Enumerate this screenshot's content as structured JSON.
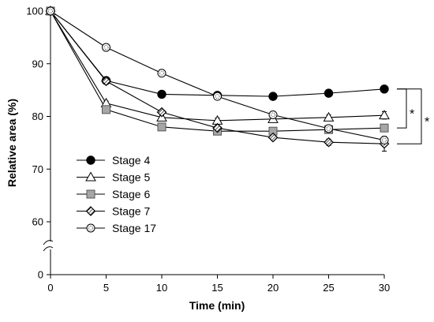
{
  "chart_data": {
    "type": "line",
    "title": "",
    "xlabel": "Time (min)",
    "ylabel": "Relative area (%)",
    "x": [
      0,
      5,
      10,
      15,
      20,
      25,
      30
    ],
    "xticks": [
      0,
      5,
      10,
      15,
      20,
      25,
      30
    ],
    "yticks": [
      0,
      60,
      70,
      80,
      90,
      100
    ],
    "xlim": [
      0,
      30
    ],
    "ylim_upper": [
      60,
      100
    ],
    "y_axis_break": true,
    "grid": false,
    "legend_position": "lower-left",
    "series": [
      {
        "name": "Stage 4",
        "marker": "filled-circle",
        "values": [
          100,
          86.8,
          84.2,
          84.0,
          83.8,
          84.4,
          85.2
        ],
        "errors": [
          0,
          0.3,
          0.3,
          0.3,
          0.3,
          0.3,
          0.3
        ]
      },
      {
        "name": "Stage 5",
        "marker": "open-triangle",
        "values": [
          100,
          82.5,
          79.8,
          79.2,
          79.5,
          79.8,
          80.2
        ],
        "errors": [
          0,
          0.4,
          0.4,
          0.5,
          0.6,
          0.5,
          0.7
        ]
      },
      {
        "name": "Stage 6",
        "marker": "gray-square",
        "values": [
          100,
          81.3,
          78.0,
          77.2,
          77.2,
          77.5,
          77.8
        ],
        "errors": [
          0,
          0.4,
          0.4,
          0.4,
          0.5,
          0.5,
          0.5
        ]
      },
      {
        "name": "Stage 7",
        "marker": "hatched-diamond",
        "values": [
          100,
          86.7,
          80.8,
          77.8,
          76.0,
          75.1,
          74.8
        ],
        "errors": [
          0,
          0.4,
          0.4,
          0.5,
          0.5,
          0.6,
          1.4
        ]
      },
      {
        "name": "Stage 17",
        "marker": "dotted-circle",
        "values": [
          100,
          93.1,
          88.2,
          83.8,
          80.3,
          77.7,
          75.5
        ],
        "errors": [
          0,
          0.3,
          0.4,
          0.4,
          0.5,
          0.5,
          0.5
        ]
      }
    ],
    "annotations": [
      {
        "text": "*",
        "between": [
          "Stage 4",
          "Stage 6"
        ]
      },
      {
        "text": "*",
        "between": [
          "Stage 4",
          "Stage 7"
        ]
      }
    ]
  }
}
